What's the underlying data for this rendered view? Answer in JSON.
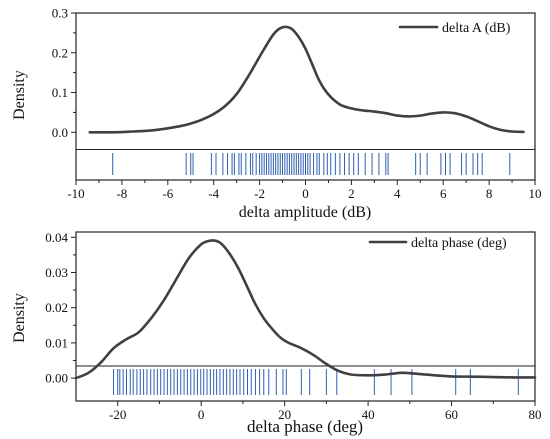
{
  "chart_data": [
    {
      "type": "line",
      "subtype": "density-with-rug",
      "xlabel": "delta amplitude (dB)",
      "ylabel": "Density",
      "xlim": [
        -10,
        10
      ],
      "ylim": [
        -0.12,
        0.3
      ],
      "x_ticks": [
        -10,
        -8,
        -6,
        -4,
        -2,
        0,
        2,
        4,
        6,
        8,
        10
      ],
      "y_ticks": [
        0.0,
        0.1,
        0.2,
        0.3
      ],
      "x_tick_labels": [
        "-10",
        "-8",
        "-6",
        "-4",
        "-2",
        "0",
        "2",
        "4",
        "6",
        "8",
        "10"
      ],
      "y_tick_labels": [
        "0.0",
        "0.1",
        "0.2",
        "0.3"
      ],
      "legend": {
        "label": "delta A (dB)",
        "position": "top-right"
      },
      "series": [
        {
          "name": "delta A (dB)",
          "color": "#404040",
          "x": [
            -9.4,
            -8.5,
            -7.5,
            -6.5,
            -5.5,
            -5.0,
            -4.5,
            -4.0,
            -3.5,
            -3.0,
            -2.5,
            -2.0,
            -1.5,
            -1.2,
            -0.9,
            -0.6,
            -0.3,
            0.0,
            0.3,
            0.6,
            1.0,
            1.5,
            2.0,
            2.5,
            3.0,
            3.5,
            4.0,
            4.5,
            5.0,
            5.5,
            6.0,
            6.5,
            7.0,
            7.5,
            8.0,
            8.5,
            9.0,
            9.5
          ],
          "y": [
            0.0,
            0.0,
            0.002,
            0.006,
            0.015,
            0.022,
            0.032,
            0.046,
            0.066,
            0.096,
            0.14,
            0.19,
            0.238,
            0.258,
            0.265,
            0.26,
            0.24,
            0.21,
            0.17,
            0.13,
            0.095,
            0.07,
            0.06,
            0.055,
            0.052,
            0.048,
            0.042,
            0.04,
            0.042,
            0.047,
            0.05,
            0.048,
            0.04,
            0.028,
            0.015,
            0.006,
            0.002,
            0.001
          ]
        }
      ],
      "rug": [
        -8.4,
        -5.2,
        -5.0,
        -4.9,
        -4.1,
        -3.9,
        -3.6,
        -3.4,
        -3.2,
        -3.1,
        -2.9,
        -2.8,
        -2.6,
        -2.4,
        -2.3,
        -2.15,
        -2.0,
        -1.9,
        -1.8,
        -1.7,
        -1.6,
        -1.5,
        -1.4,
        -1.3,
        -1.2,
        -1.1,
        -1.0,
        -0.9,
        -0.8,
        -0.7,
        -0.6,
        -0.5,
        -0.4,
        -0.3,
        -0.2,
        -0.1,
        0.0,
        0.1,
        0.2,
        0.35,
        0.5,
        0.6,
        0.8,
        0.95,
        1.1,
        1.3,
        1.5,
        1.7,
        1.9,
        2.1,
        2.3,
        2.6,
        2.9,
        3.2,
        3.5,
        3.6,
        4.8,
        5.0,
        5.3,
        5.9,
        6.1,
        6.3,
        6.8,
        7.0,
        7.3,
        7.5,
        7.7,
        8.9
      ]
    },
    {
      "type": "line",
      "subtype": "density-with-rug",
      "xlabel": "delta phase (deg)",
      "ylabel": "Density",
      "xlim": [
        -30,
        80
      ],
      "ylim": [
        -0.0065,
        0.0415
      ],
      "x_ticks": [
        -20,
        0,
        20,
        40,
        60,
        80
      ],
      "y_ticks": [
        0.0,
        0.01,
        0.02,
        0.03,
        0.04
      ],
      "x_tick_labels": [
        "-20",
        "0",
        "20",
        "40",
        "60",
        "80"
      ],
      "y_tick_labels": [
        "0.00",
        "0.01",
        "0.02",
        "0.03",
        "0.04"
      ],
      "legend": {
        "label": "delta phase (deg)",
        "position": "top-right"
      },
      "series": [
        {
          "name": "delta phase (deg)",
          "color": "#404040",
          "x": [
            -30,
            -27,
            -24,
            -21,
            -18,
            -15,
            -12,
            -9,
            -6,
            -3,
            0,
            2,
            3.5,
            5,
            7,
            9,
            11,
            13,
            15,
            17,
            19,
            21,
            24,
            27,
            30,
            33,
            36,
            40,
            44,
            48,
            52,
            56,
            60,
            65,
            70,
            75,
            80
          ],
          "y": [
            0.0,
            0.0015,
            0.0045,
            0.0085,
            0.011,
            0.013,
            0.017,
            0.022,
            0.028,
            0.034,
            0.038,
            0.039,
            0.039,
            0.038,
            0.035,
            0.031,
            0.026,
            0.021,
            0.017,
            0.014,
            0.0115,
            0.01,
            0.0085,
            0.0065,
            0.004,
            0.002,
            0.001,
            0.0008,
            0.001,
            0.0015,
            0.0012,
            0.0008,
            0.0005,
            0.0004,
            0.0003,
            0.0002,
            0.0002
          ]
        }
      ],
      "rug": [
        -21,
        -20,
        -19.5,
        -18.7,
        -17.9,
        -17,
        -16.3,
        -15.4,
        -14.6,
        -13.8,
        -13,
        -12.1,
        -11.3,
        -10.5,
        -9.7,
        -8.9,
        -8.1,
        -7.3,
        -6.5,
        -5.7,
        -4.9,
        -4.1,
        -3.3,
        -2.5,
        -1.7,
        -0.9,
        -0.1,
        0.6,
        1.4,
        2.2,
        3.0,
        3.7,
        4.5,
        5.3,
        6.1,
        6.9,
        7.7,
        8.5,
        9.3,
        10.2,
        11.1,
        12.0,
        13.0,
        14.0,
        15.0,
        16.2,
        18.0,
        19.6,
        20.4,
        24.0,
        26.0,
        30.0,
        32.5,
        41.5,
        45.5,
        50.5,
        61.0,
        64.5,
        76.0
      ]
    }
  ]
}
